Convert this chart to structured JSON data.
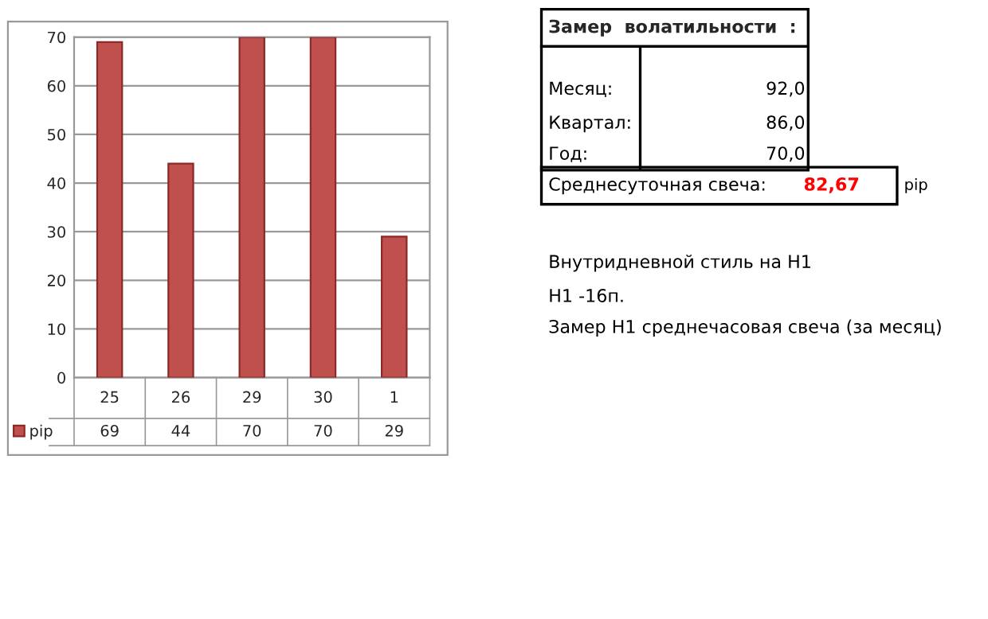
{
  "chart_data": {
    "type": "bar",
    "title": "Замер  волатильности  :",
    "categories": [
      "25",
      "26",
      "29",
      "30",
      "1"
    ],
    "series": [
      {
        "name": "pip",
        "color": "#c0504d",
        "values": [
          69,
          44,
          70,
          70,
          29
        ]
      }
    ],
    "ylim": [
      0,
      70
    ],
    "yticks": [
      0,
      10,
      20,
      30,
      40,
      50,
      60,
      70
    ],
    "grid": "y",
    "legend": "bottom",
    "data_labels": true,
    "annotations": [
      "Месяц:",
      "92,0",
      "Квартал:",
      "86,0",
      "Год:",
      "70,0",
      "Среднесуточная свеча:",
      "82,67",
      "pip",
      "Внутридневной стиль на H1",
      "H1 -16п.",
      "Замер H1 среднечасовая свеча (за месяц)"
    ]
  }
}
